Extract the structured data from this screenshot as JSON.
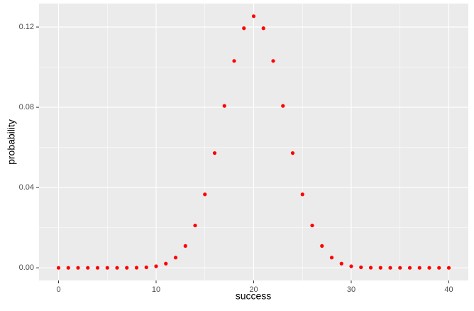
{
  "chart_data": {
    "type": "scatter",
    "x_label": "success",
    "y_label": "probability",
    "x": [
      0,
      1,
      2,
      3,
      4,
      5,
      6,
      7,
      8,
      9,
      10,
      11,
      12,
      13,
      14,
      15,
      16,
      17,
      18,
      19,
      20,
      21,
      22,
      23,
      24,
      25,
      26,
      27,
      28,
      29,
      30,
      31,
      32,
      33,
      34,
      35,
      36,
      37,
      38,
      39,
      40
    ],
    "values": [
      0,
      0,
      0,
      0,
      0,
      0,
      0,
      2e-05,
      7e-05,
      0.00025,
      0.00077,
      0.0021,
      0.0051,
      0.0109,
      0.0211,
      0.0366,
      0.0572,
      0.0807,
      0.1031,
      0.1194,
      0.1254,
      0.1194,
      0.1031,
      0.0807,
      0.0572,
      0.0366,
      0.0211,
      0.0109,
      0.0051,
      0.0021,
      0.00077,
      0.00025,
      7e-05,
      2e-05,
      0,
      0,
      0,
      0,
      0,
      0,
      0
    ],
    "color": "#ff0000",
    "xlim": [
      -2,
      42
    ],
    "ylim": [
      -0.0063,
      0.1317
    ],
    "xticks": [
      0,
      10,
      20,
      30,
      40
    ],
    "yticks": [
      {
        "value": 0,
        "label": "0.00"
      },
      {
        "value": 0.04,
        "label": "0.04"
      },
      {
        "value": 0.08,
        "label": "0.08"
      },
      {
        "value": 0.12,
        "label": "0.12"
      }
    ],
    "grid": true
  }
}
